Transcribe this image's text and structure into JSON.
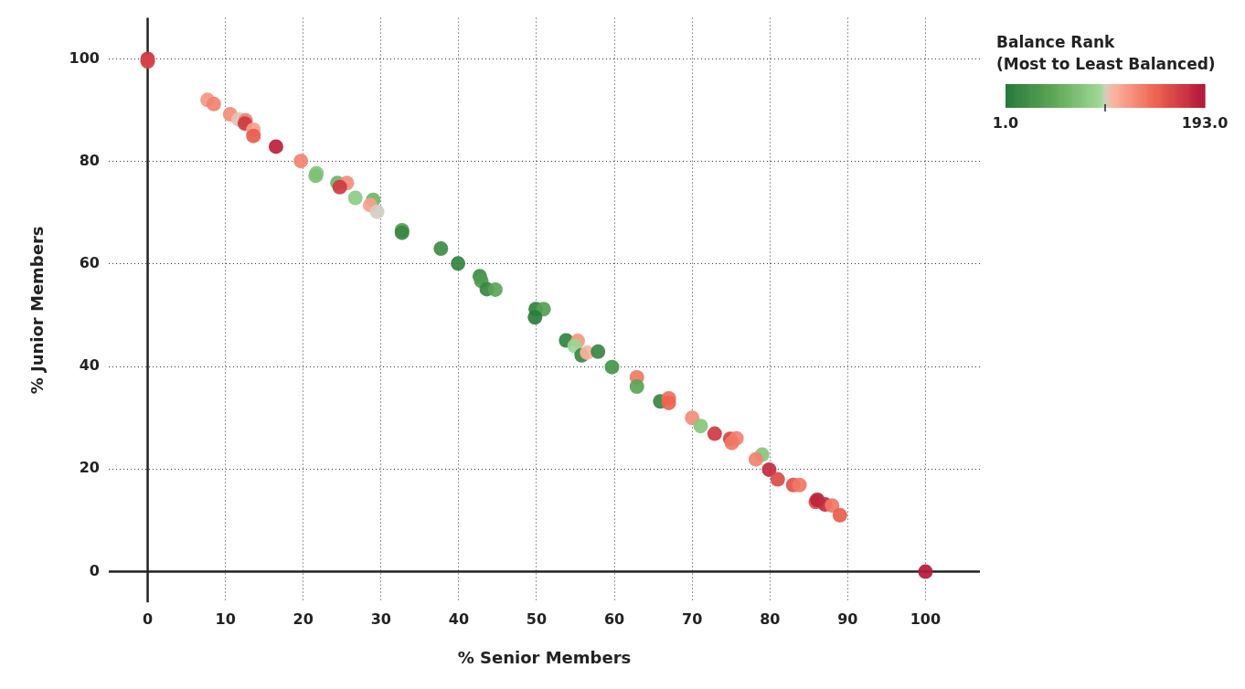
{
  "chart_data": {
    "type": "scatter",
    "xlabel": "% Senior Members",
    "ylabel": "% Junior Members",
    "clabel": "Balance Rank\n(Most to Least Balanced)",
    "xlim": [
      -5,
      107
    ],
    "ylim": [
      -6,
      108
    ],
    "xticks": [
      0,
      10,
      20,
      30,
      40,
      50,
      60,
      70,
      80,
      90,
      100
    ],
    "yticks": [
      0,
      20,
      40,
      60,
      80,
      100
    ],
    "grid": true,
    "marker": "circle",
    "clim": [
      1,
      193
    ],
    "cticks": [
      {
        "value": 1,
        "label": "1.0"
      },
      {
        "value": 97,
        "label": null
      },
      {
        "value": 193,
        "label": "193.0"
      }
    ],
    "series": [
      {
        "x": [
          0,
          0,
          7.7,
          8.5,
          10.6,
          11.7,
          12.6,
          12.5,
          13.6,
          13.6,
          16.5,
          19.7,
          21.7,
          21.6,
          24.4,
          25.6,
          24.7,
          26.7,
          29.0,
          28.6,
          29.5,
          32.7,
          32.7,
          37.7,
          39.9,
          42.7,
          42.9,
          43.6,
          44.7,
          49.9,
          50.9,
          49.8,
          53.8,
          55.3,
          54.9,
          55.8,
          56.5,
          57.9,
          59.7,
          62.9,
          62.9,
          65.9,
          67.0,
          67.0,
          70.0,
          71.1,
          72.9,
          74.9,
          75.7,
          75.1,
          79.0,
          78.2,
          79.9,
          81.0,
          83.0,
          83.8,
          85.9,
          86.1,
          87.1,
          88.0,
          89.0,
          100.0
        ],
        "values": [
          100,
          99.5,
          92.0,
          91.2,
          89.2,
          88.2,
          88.0,
          87.4,
          86.2,
          85.0,
          82.9,
          80.1,
          77.7,
          77.2,
          75.8,
          75.8,
          75.0,
          72.9,
          72.5,
          71.5,
          70.2,
          66.6,
          66.1,
          63.0,
          60.1,
          57.6,
          56.7,
          55.1,
          55.0,
          51.2,
          51.2,
          49.6,
          45.1,
          45.0,
          44.0,
          42.2,
          42.7,
          42.9,
          39.9,
          37.9,
          36.1,
          33.2,
          33.8,
          32.9,
          30.0,
          28.4,
          26.9,
          25.9,
          26.0,
          25.1,
          22.8,
          21.9,
          19.9,
          18.0,
          16.9,
          16.9,
          13.6,
          14.0,
          13.1,
          12.9,
          11.0,
          0
        ],
        "cvalues": [
          175,
          165,
          120,
          130,
          125,
          100,
          130,
          170,
          115,
          150,
          185,
          130,
          75,
          70,
          60,
          125,
          170,
          80,
          60,
          115,
          97,
          40,
          15,
          20,
          10,
          20,
          35,
          15,
          45,
          10,
          40,
          5,
          10,
          120,
          90,
          15,
          105,
          15,
          30,
          135,
          45,
          15,
          140,
          145,
          125,
          75,
          170,
          165,
          130,
          135,
          75,
          130,
          180,
          160,
          155,
          135,
          160,
          185,
          180,
          135,
          150,
          190
        ]
      }
    ]
  }
}
